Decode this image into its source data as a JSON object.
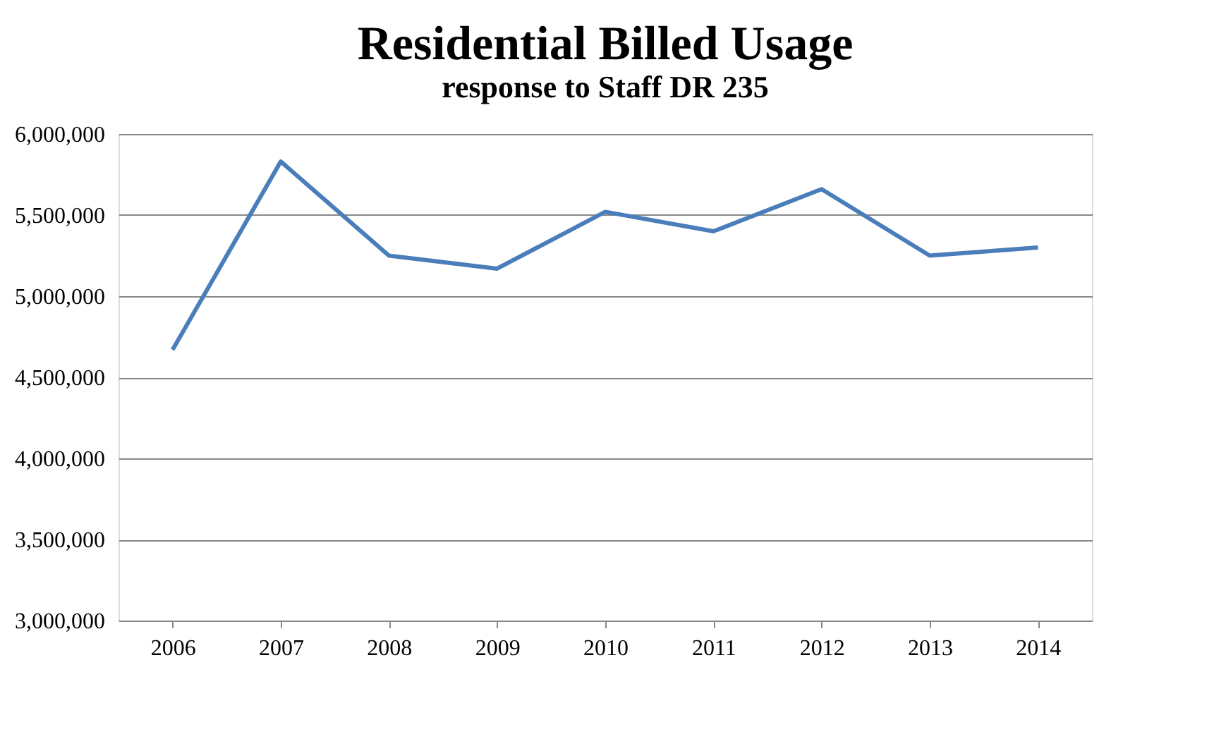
{
  "chart_data": {
    "type": "line",
    "title": "Residential Billed Usage",
    "subtitle": "response to Staff DR 235",
    "categories": [
      "2006",
      "2007",
      "2008",
      "2009",
      "2010",
      "2011",
      "2012",
      "2013",
      "2014"
    ],
    "series": [
      {
        "color": "#4a7ebb",
        "values": [
          4670000,
          5830000,
          5250000,
          5170000,
          5520000,
          5400000,
          5660000,
          5250000,
          5300000
        ]
      }
    ],
    "ylim": [
      3000000,
      6000000
    ],
    "yticks": [
      {
        "value": 3000000,
        "label": "3,000,000"
      },
      {
        "value": 3500000,
        "label": "3,500,000"
      },
      {
        "value": 4000000,
        "label": "4,000,000"
      },
      {
        "value": 4500000,
        "label": "4,500,000"
      },
      {
        "value": 5000000,
        "label": "5,000,000"
      },
      {
        "value": 5500000,
        "label": "5,500,000"
      },
      {
        "value": 6000000,
        "label": "6,000,000"
      }
    ],
    "grid": "y",
    "marker": "none",
    "line_style": "solid"
  }
}
